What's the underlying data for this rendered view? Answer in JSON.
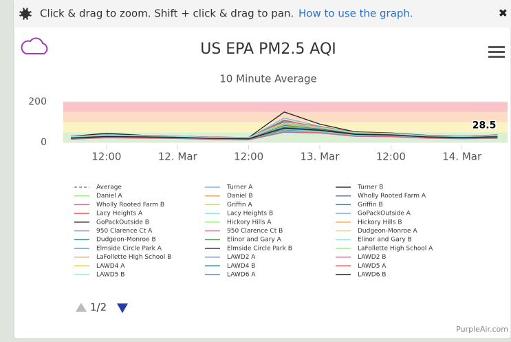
{
  "toolbar": {
    "hint": "Click & drag to zoom. Shift + click & drag to pan.",
    "link": "How to use the graph.",
    "close": "✖"
  },
  "chart_data": {
    "type": "line",
    "title": "US EPA PM2.5 AQI",
    "subtitle": "10 Minute Average",
    "x": [
      6,
      12,
      18,
      24,
      30,
      36,
      42,
      48,
      54,
      60,
      66,
      72,
      78
    ],
    "xlim": [
      4.7,
      79.7
    ],
    "xticks": [
      {
        "value": 12,
        "label": "12:00"
      },
      {
        "value": 24,
        "label": "12. Mar"
      },
      {
        "value": 36,
        "label": "12:00"
      },
      {
        "value": 48,
        "label": "13. Mar"
      },
      {
        "value": 60,
        "label": "12:00"
      },
      {
        "value": 72,
        "label": "14. Mar"
      }
    ],
    "ylim": [
      0,
      200
    ],
    "yticks": [
      0,
      200
    ],
    "bands": [
      {
        "from": 0,
        "to": 50,
        "color": "#d9f1d2"
      },
      {
        "from": 50,
        "to": 100,
        "color": "#fbf3c2"
      },
      {
        "from": 100,
        "to": 150,
        "color": "#fcdcc4"
      },
      {
        "from": 150,
        "to": 200,
        "color": "#f9c3c8"
      }
    ],
    "series": [
      {
        "name": "Average",
        "color": "#888888",
        "dash": true,
        "values": [
          22,
          30,
          28,
          25,
          20,
          18,
          75,
          62,
          40,
          38,
          27,
          24,
          28.5
        ]
      },
      {
        "name": "Turner A",
        "color": "#7cb5ec",
        "values": [
          20,
          28,
          26,
          24,
          18,
          16,
          70,
          58,
          38,
          35,
          25,
          22,
          26
        ]
      },
      {
        "name": "Turner B",
        "color": "#333333",
        "values": [
          24,
          35,
          30,
          27,
          22,
          19,
          85,
          66,
          44,
          40,
          29,
          26,
          31
        ]
      },
      {
        "name": "Daniel A",
        "color": "#90ed7d",
        "values": [
          18,
          26,
          25,
          22,
          17,
          15,
          60,
          55,
          36,
          33,
          24,
          20,
          24
        ]
      },
      {
        "name": "Daniel B",
        "color": "#f7a35c",
        "values": [
          19,
          27,
          24,
          23,
          18,
          16,
          64,
          57,
          37,
          34,
          25,
          21,
          25
        ]
      },
      {
        "name": "Wholly Rooted Farm A",
        "color": "#5f7494",
        "values": [
          23,
          31,
          29,
          26,
          21,
          19,
          78,
          64,
          42,
          39,
          28,
          25,
          29
        ]
      },
      {
        "name": "Wholly Rooted Farm B",
        "color": "#f15c80",
        "values": [
          22,
          30,
          28,
          25,
          20,
          18,
          74,
          63,
          41,
          37,
          27,
          24,
          28
        ]
      },
      {
        "name": "Griffin A",
        "color": "#e4d354",
        "values": [
          25,
          33,
          31,
          28,
          23,
          21,
          95,
          70,
          46,
          41,
          30,
          27,
          32
        ]
      },
      {
        "name": "Griffin B",
        "color": "#2b908f",
        "values": [
          26,
          34,
          32,
          29,
          24,
          22,
          110,
          72,
          47,
          42,
          31,
          28,
          33
        ]
      },
      {
        "name": "Lacy Heights A",
        "color": "#f45b5b",
        "values": [
          17,
          24,
          22,
          20,
          16,
          14,
          55,
          50,
          33,
          30,
          22,
          19,
          22
        ]
      },
      {
        "name": "Lacy Heights B",
        "color": "#91e8e1",
        "values": [
          18,
          25,
          23,
          21,
          17,
          15,
          58,
          52,
          34,
          31,
          23,
          20,
          23
        ]
      },
      {
        "name": "GoPackOutside A",
        "color": "#7cb5ec",
        "values": [
          28,
          40,
          33,
          30,
          25,
          23,
          120,
          80,
          50,
          45,
          33,
          30,
          35
        ]
      },
      {
        "name": "GoPackOutside B",
        "color": "#222222",
        "values": [
          30,
          45,
          35,
          31,
          26,
          24,
          150,
          90,
          52,
          47,
          35,
          31,
          37
        ]
      },
      {
        "name": "Hickory Hills A",
        "color": "#90ed7d",
        "values": [
          21,
          29,
          27,
          24,
          19,
          17,
          68,
          60,
          39,
          36,
          26,
          23,
          27
        ]
      },
      {
        "name": "Hickory Hills B",
        "color": "#f7a35c",
        "values": [
          22,
          30,
          28,
          25,
          20,
          18,
          72,
          61,
          40,
          37,
          27,
          24,
          28
        ]
      },
      {
        "name": "950 Clarence Ct A",
        "color": "#8085e9",
        "values": [
          20,
          27,
          26,
          23,
          19,
          17,
          66,
          56,
          38,
          35,
          26,
          22,
          26
        ]
      },
      {
        "name": "950 Clarence Ct B",
        "color": "#f15c80",
        "values": [
          21,
          28,
          27,
          24,
          20,
          18,
          69,
          58,
          39,
          36,
          27,
          23,
          27
        ]
      },
      {
        "name": "Dudgeon-Monroe A",
        "color": "#e4d354",
        "values": [
          24,
          32,
          30,
          27,
          22,
          20,
          80,
          65,
          43,
          40,
          29,
          26,
          30
        ]
      },
      {
        "name": "Dudgeon-Monroe B",
        "color": "#2b908f",
        "values": [
          25,
          33,
          31,
          28,
          23,
          21,
          84,
          67,
          44,
          41,
          30,
          27,
          31
        ]
      },
      {
        "name": "Elinor and Gary A",
        "color": "#3f9f3f",
        "values": [
          19,
          26,
          24,
          22,
          18,
          16,
          62,
          54,
          36,
          33,
          24,
          21,
          24
        ]
      },
      {
        "name": "Elinor and Gary B",
        "color": "#91e8e1",
        "values": [
          20,
          27,
          25,
          23,
          19,
          17,
          65,
          55,
          37,
          34,
          25,
          22,
          25
        ]
      },
      {
        "name": "Elmside Circle Park A",
        "color": "#6b8fd6",
        "values": [
          23,
          31,
          28,
          26,
          21,
          19,
          76,
          63,
          41,
          38,
          28,
          25,
          29
        ]
      },
      {
        "name": "Elmside Circle Park B",
        "color": "#333333",
        "values": [
          24,
          36,
          29,
          27,
          22,
          20,
          100,
          68,
          43,
          39,
          29,
          26,
          30
        ]
      },
      {
        "name": "LaFollette High School A",
        "color": "#90ed7d",
        "values": [
          26,
          35,
          32,
          29,
          24,
          22,
          88,
          70,
          46,
          42,
          31,
          28,
          34
        ]
      },
      {
        "name": "LaFollette High School B",
        "color": "#f7a35c",
        "values": [
          27,
          36,
          33,
          30,
          25,
          23,
          92,
          72,
          47,
          43,
          32,
          29,
          35
        ]
      },
      {
        "name": "LAWD2 A",
        "color": "#8085e9",
        "values": [
          16,
          23,
          21,
          19,
          15,
          13,
          50,
          46,
          30,
          28,
          21,
          18,
          20
        ]
      },
      {
        "name": "LAWD2 B",
        "color": "#f15c80",
        "values": [
          17,
          24,
          22,
          20,
          16,
          14,
          53,
          48,
          31,
          29,
          22,
          19,
          21
        ]
      },
      {
        "name": "LAWD4 A",
        "color": "#e4d354",
        "values": [
          22,
          29,
          27,
          25,
          20,
          18,
          70,
          60,
          40,
          37,
          27,
          24,
          27
        ]
      },
      {
        "name": "LAWD4 B",
        "color": "#2b908f",
        "values": [
          23,
          30,
          28,
          26,
          21,
          19,
          73,
          62,
          41,
          38,
          28,
          25,
          28
        ]
      },
      {
        "name": "LAWD5 A",
        "color": "#f45b5b",
        "values": [
          29,
          38,
          34,
          31,
          26,
          24,
          105,
          78,
          49,
          45,
          34,
          30,
          36
        ]
      },
      {
        "name": "LAWD5 B",
        "color": "#91e8e1",
        "values": [
          28,
          37,
          33,
          30,
          25,
          23,
          98,
          75,
          48,
          44,
          33,
          29,
          35
        ]
      },
      {
        "name": "LAWD6 A",
        "color": "#5b8cc4",
        "values": [
          20,
          28,
          26,
          24,
          19,
          17,
          67,
          58,
          39,
          36,
          26,
          23,
          26
        ]
      },
      {
        "name": "LAWD6 B",
        "color": "#222222",
        "values": [
          21,
          29,
          27,
          25,
          20,
          18,
          71,
          60,
          40,
          37,
          27,
          24,
          27
        ]
      }
    ]
  },
  "legend_page": "1/2",
  "credit": "PurpleAir.com"
}
